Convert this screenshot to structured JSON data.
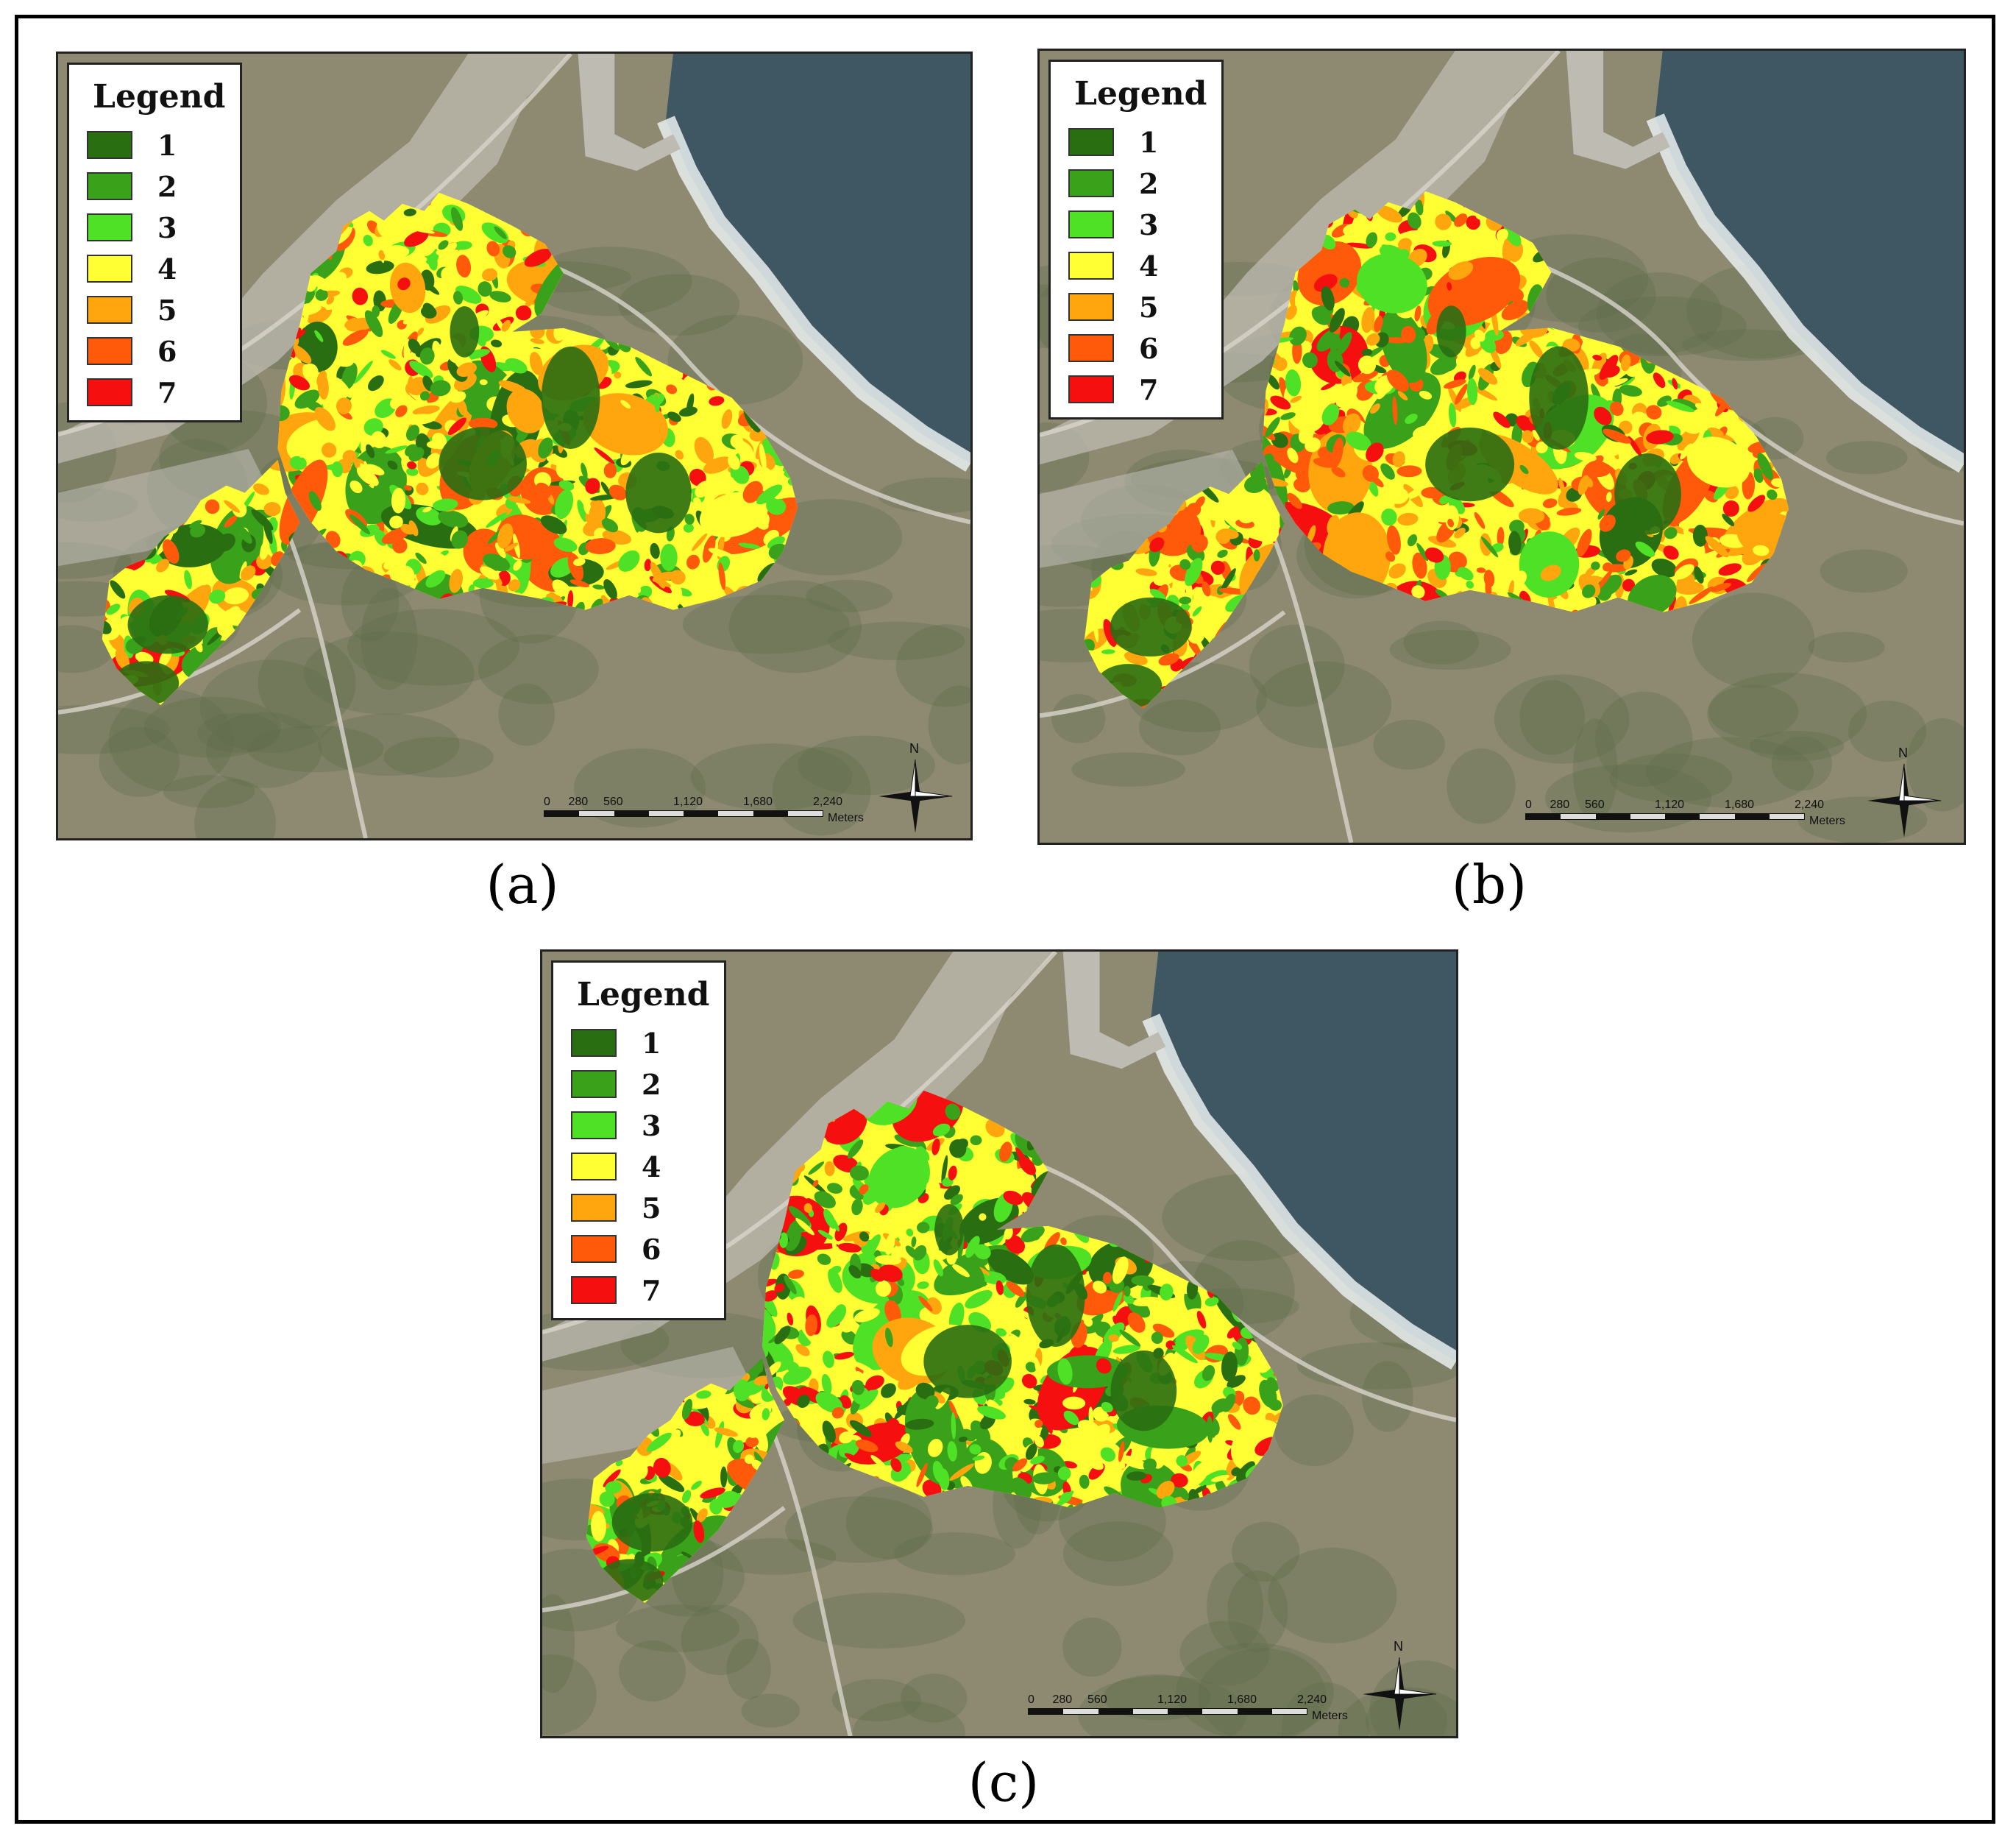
{
  "panels": [
    {
      "id": "a",
      "caption": "(a)",
      "legend": {
        "title": "Legend",
        "items": [
          {
            "label": "1",
            "color": "#2a6e12"
          },
          {
            "label": "2",
            "color": "#3aa11a"
          },
          {
            "label": "3",
            "color": "#4fe126"
          },
          {
            "label": "4",
            "color": "#ffff33"
          },
          {
            "label": "5",
            "color": "#ffa50d"
          },
          {
            "label": "6",
            "color": "#ff5a0a"
          },
          {
            "label": "7",
            "color": "#f50f0f"
          }
        ]
      },
      "scale": {
        "ticks": [
          "0",
          "280",
          "560",
          "1,120",
          "1,680",
          "2,240"
        ],
        "unit": "Meters"
      },
      "north_label": "N",
      "class_mix": {
        "1": 0.1,
        "2": 0.13,
        "3": 0.15,
        "4": 0.32,
        "5": 0.18,
        "6": 0.07,
        "7": 0.05
      }
    },
    {
      "id": "b",
      "caption": "(b)",
      "legend": {
        "title": "Legend",
        "items": [
          {
            "label": "1",
            "color": "#2a6e12"
          },
          {
            "label": "2",
            "color": "#3aa11a"
          },
          {
            "label": "3",
            "color": "#4fe126"
          },
          {
            "label": "4",
            "color": "#ffff33"
          },
          {
            "label": "5",
            "color": "#ffa50d"
          },
          {
            "label": "6",
            "color": "#ff5a0a"
          },
          {
            "label": "7",
            "color": "#f50f0f"
          }
        ]
      },
      "scale": {
        "ticks": [
          "0",
          "280",
          "560",
          "1,120",
          "1,680",
          "2,240"
        ],
        "unit": "Meters"
      },
      "north_label": "N",
      "class_mix": {
        "1": 0.06,
        "2": 0.12,
        "3": 0.1,
        "4": 0.18,
        "5": 0.22,
        "6": 0.22,
        "7": 0.1
      }
    },
    {
      "id": "c",
      "caption": "(c)",
      "legend": {
        "title": "Legend",
        "items": [
          {
            "label": "1",
            "color": "#2a6e12"
          },
          {
            "label": "2",
            "color": "#3aa11a"
          },
          {
            "label": "3",
            "color": "#4fe126"
          },
          {
            "label": "4",
            "color": "#ffff33"
          },
          {
            "label": "5",
            "color": "#ffa50d"
          },
          {
            "label": "6",
            "color": "#ff5a0a"
          },
          {
            "label": "7",
            "color": "#f50f0f"
          }
        ]
      },
      "scale": {
        "ticks": [
          "0",
          "280",
          "560",
          "1,120",
          "1,680",
          "2,240"
        ],
        "unit": "Meters"
      },
      "north_label": "N",
      "class_mix": {
        "1": 0.1,
        "2": 0.2,
        "3": 0.2,
        "4": 0.2,
        "5": 0.08,
        "6": 0.07,
        "7": 0.15
      }
    }
  ],
  "basemap_colors": {
    "land": "#8e8a72",
    "sea": "#3f5763",
    "surf": "#e9eef0",
    "urban": "#bdbbb2",
    "forest": "#5f6c4a"
  }
}
